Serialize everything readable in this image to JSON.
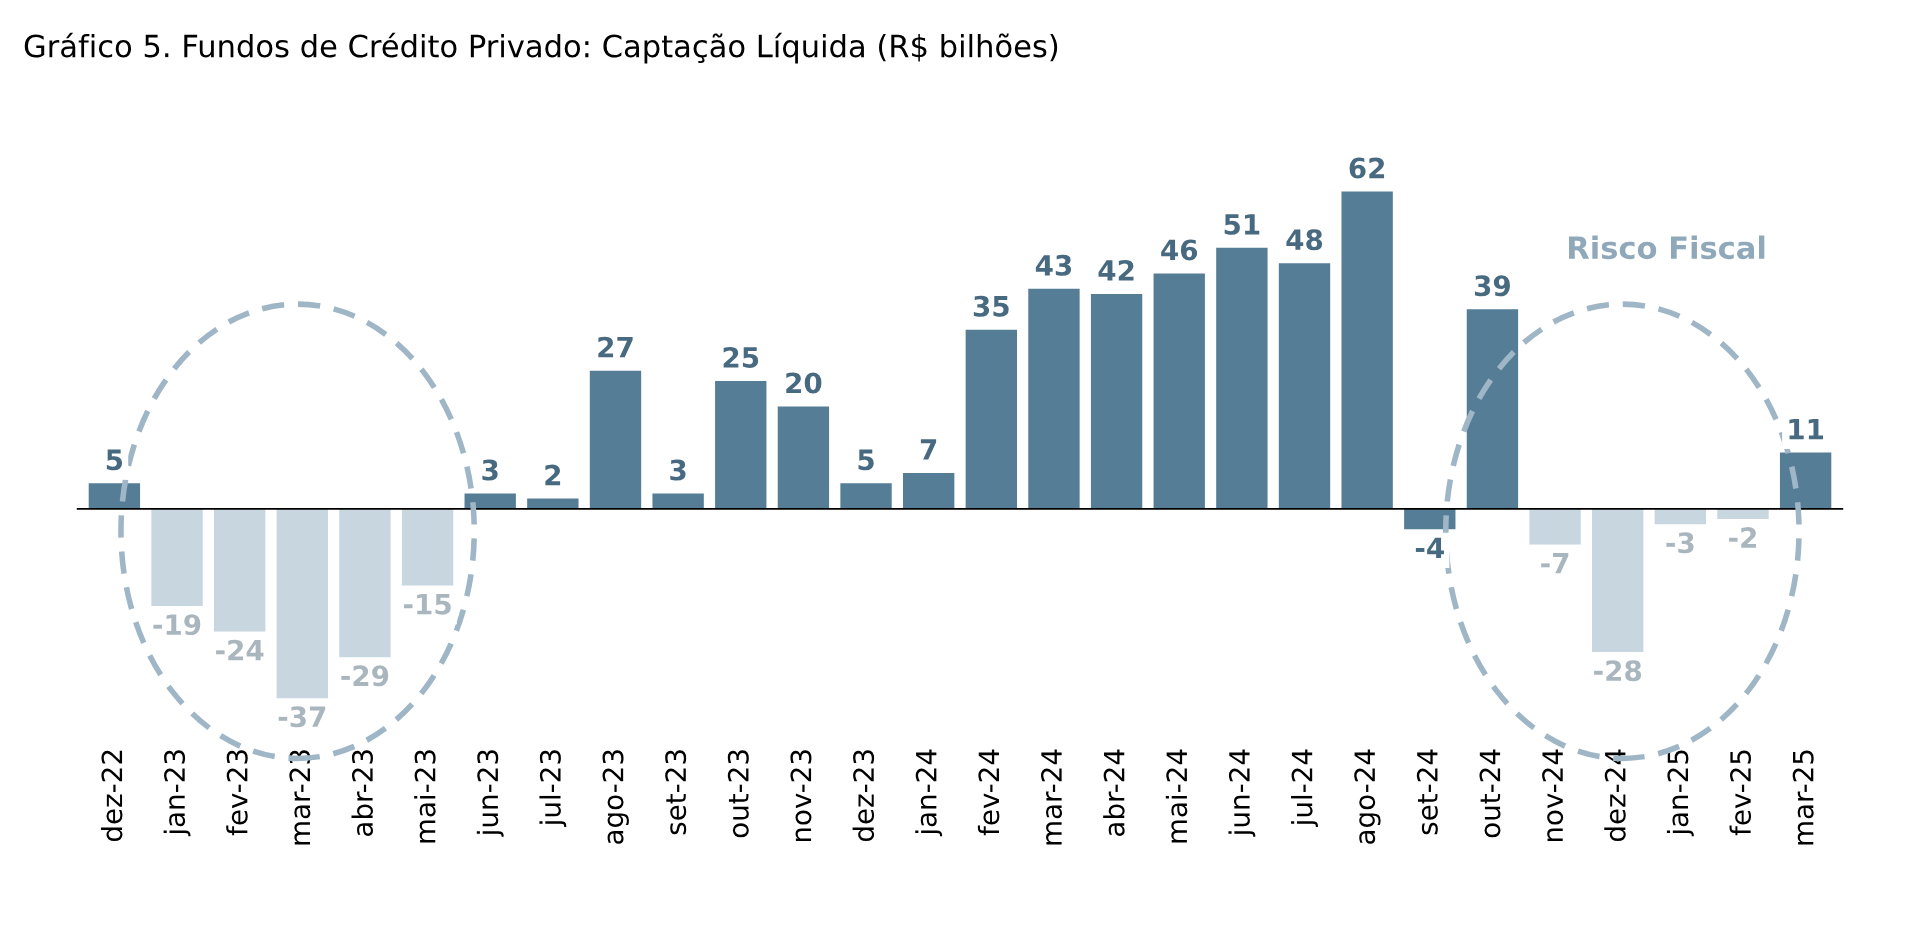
{
  "chart_data": {
    "type": "bar",
    "title": "Gráfico 5. Fundos de Crédito Privado: Captação Líquida (R$ bilhões)",
    "categories": [
      "dez-22",
      "jan-23",
      "fev-23",
      "mar-23",
      "abr-23",
      "mai-23",
      "jun-23",
      "jul-23",
      "ago-23",
      "set-23",
      "out-23",
      "nov-23",
      "dez-23",
      "jan-24",
      "fev-24",
      "mar-24",
      "abr-24",
      "mai-24",
      "jun-24",
      "jul-24",
      "ago-24",
      "set-24",
      "out-24",
      "nov-24",
      "dez-24",
      "jan-25",
      "fev-25",
      "mar-25"
    ],
    "values": [
      5,
      -19,
      -24,
      -37,
      -29,
      -15,
      3,
      2,
      27,
      3,
      25,
      20,
      5,
      7,
      35,
      43,
      42,
      46,
      51,
      48,
      62,
      -4,
      39,
      -7,
      -28,
      -3,
      -2,
      11
    ],
    "colors": [
      "#557d96",
      "#c8d6e0",
      "#c8d6e0",
      "#c8d6e0",
      "#c8d6e0",
      "#c8d6e0",
      "#557d96",
      "#557d96",
      "#557d96",
      "#557d96",
      "#557d96",
      "#557d96",
      "#557d96",
      "#557d96",
      "#557d96",
      "#557d96",
      "#557d96",
      "#557d96",
      "#557d96",
      "#557d96",
      "#557d96",
      "#557d96",
      "#557d96",
      "#c8d6e0",
      "#c8d6e0",
      "#c8d6e0",
      "#c8d6e0",
      "#557d96"
    ],
    "data_labels": true,
    "annotations": [
      "Risco Fiscal"
    ],
    "grid": false,
    "legend": false
  }
}
